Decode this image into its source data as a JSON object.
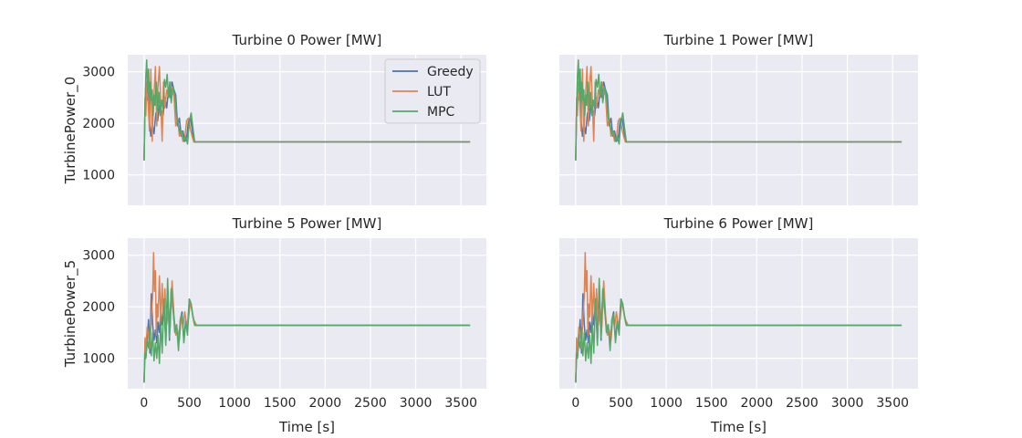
{
  "chart_data": [
    {
      "type": "line",
      "title": "Turbine 0 Power [MW]",
      "xlabel": "",
      "ylabel": "TurbinePower_0",
      "xlim": [
        -180,
        3780
      ],
      "ylim": [
        410,
        3330
      ],
      "xticks": [
        0,
        500,
        1000,
        1500,
        2000,
        2500,
        3000,
        3500
      ],
      "yticks": [
        1000,
        2000,
        3000
      ],
      "show_xtick_labels": false,
      "show_ytick_labels": true,
      "legend": "top-right",
      "series": [
        {
          "name": "Greedy",
          "color": "#4c72b0",
          "x": [
            0,
            10,
            20,
            30,
            45,
            60,
            75,
            90,
            110,
            130,
            150,
            170,
            190,
            210,
            230,
            250,
            270,
            290,
            310,
            330,
            350,
            370,
            390,
            410,
            430,
            450,
            470,
            490,
            510,
            530,
            550,
            580,
            600,
            3600
          ],
          "y": [
            1280,
            2300,
            2750,
            2450,
            2600,
            2050,
            1750,
            2000,
            1800,
            2200,
            2050,
            2350,
            2250,
            2150,
            2500,
            2300,
            2650,
            2500,
            2800,
            2650,
            2550,
            1950,
            2100,
            1750,
            1850,
            1650,
            1700,
            2050,
            2100,
            1900,
            1640,
            1640,
            1640,
            1640
          ]
        },
        {
          "name": "LUT",
          "color": "#dd8452",
          "x": [
            0,
            10,
            20,
            30,
            45,
            60,
            75,
            90,
            100,
            110,
            125,
            140,
            155,
            170,
            185,
            200,
            215,
            230,
            250,
            270,
            290,
            310,
            330,
            350,
            370,
            390,
            410,
            430,
            450,
            470,
            490,
            510,
            530,
            550,
            580,
            600,
            3600
          ],
          "y": [
            1280,
            2500,
            2150,
            2800,
            2400,
            1850,
            3050,
            1650,
            2200,
            2550,
            3100,
            1950,
            2750,
            3100,
            2400,
            1650,
            2800,
            2300,
            2650,
            2500,
            2800,
            2650,
            2550,
            1950,
            2100,
            1750,
            1850,
            1650,
            1700,
            2050,
            2100,
            1900,
            1750,
            1640,
            1640,
            1640,
            1640
          ]
        },
        {
          "name": "MPC",
          "color": "#55a868",
          "x": [
            0,
            10,
            20,
            30,
            40,
            50,
            60,
            70,
            80,
            90,
            100,
            110,
            120,
            135,
            150,
            165,
            180,
            195,
            210,
            225,
            240,
            255,
            270,
            285,
            300,
            320,
            340,
            360,
            380,
            400,
            420,
            440,
            460,
            480,
            500,
            520,
            540,
            560,
            580,
            600,
            3600
          ],
          "y": [
            1280,
            2300,
            2900,
            3230,
            2600,
            3050,
            2400,
            2800,
            2450,
            2650,
            2150,
            2550,
            2350,
            2800,
            2250,
            2600,
            2150,
            2450,
            2300,
            2850,
            2700,
            2950,
            2500,
            2800,
            2400,
            2700,
            2550,
            2100,
            1950,
            1800,
            1850,
            1650,
            1750,
            1600,
            2050,
            2200,
            1900,
            1640,
            1640,
            1640,
            1640
          ]
        }
      ]
    },
    {
      "type": "line",
      "title": "Turbine 1 Power [MW]",
      "xlabel": "",
      "ylabel": "",
      "xlim": [
        -180,
        3780
      ],
      "ylim": [
        410,
        3330
      ],
      "xticks": [
        0,
        500,
        1000,
        1500,
        2000,
        2500,
        3000,
        3500
      ],
      "yticks": [
        1000,
        2000,
        3000
      ],
      "show_xtick_labels": false,
      "show_ytick_labels": false,
      "series": [
        {
          "name": "Greedy",
          "color": "#4c72b0",
          "x": [
            0,
            10,
            20,
            30,
            45,
            60,
            75,
            90,
            110,
            130,
            150,
            170,
            190,
            210,
            230,
            250,
            270,
            290,
            310,
            330,
            350,
            370,
            390,
            410,
            430,
            450,
            470,
            490,
            510,
            530,
            550,
            580,
            600,
            3600
          ],
          "y": [
            1280,
            2300,
            2750,
            2450,
            2600,
            2050,
            1750,
            2000,
            1800,
            2200,
            2050,
            2350,
            2250,
            2150,
            2500,
            2300,
            2650,
            2500,
            2800,
            2650,
            2550,
            1950,
            2100,
            1750,
            1850,
            1650,
            1700,
            2050,
            2100,
            1900,
            1640,
            1640,
            1640,
            1640
          ]
        },
        {
          "name": "LUT",
          "color": "#dd8452",
          "x": [
            0,
            10,
            20,
            30,
            45,
            60,
            75,
            90,
            100,
            110,
            125,
            140,
            155,
            170,
            185,
            200,
            215,
            230,
            250,
            270,
            290,
            310,
            330,
            350,
            370,
            390,
            410,
            430,
            450,
            470,
            490,
            510,
            530,
            550,
            580,
            600,
            3600
          ],
          "y": [
            1280,
            2500,
            2150,
            2800,
            2400,
            1850,
            3050,
            1650,
            2200,
            2550,
            3100,
            1950,
            2750,
            3100,
            2400,
            1650,
            2800,
            2300,
            2650,
            2500,
            2800,
            2650,
            2550,
            1950,
            2100,
            1750,
            1850,
            1650,
            1700,
            2050,
            2100,
            1900,
            1750,
            1640,
            1640,
            1640,
            1640
          ]
        },
        {
          "name": "MPC",
          "color": "#55a868",
          "x": [
            0,
            10,
            20,
            30,
            40,
            50,
            60,
            70,
            80,
            90,
            100,
            110,
            120,
            135,
            150,
            165,
            180,
            195,
            210,
            225,
            240,
            255,
            270,
            285,
            300,
            320,
            340,
            360,
            380,
            400,
            420,
            440,
            460,
            480,
            500,
            520,
            540,
            560,
            580,
            600,
            3600
          ],
          "y": [
            1280,
            2300,
            2900,
            3230,
            2600,
            3050,
            2400,
            2800,
            2450,
            2650,
            2150,
            2550,
            2350,
            2800,
            2250,
            2600,
            2150,
            2450,
            2300,
            2850,
            2700,
            2950,
            2500,
            2800,
            2400,
            2700,
            2550,
            2100,
            1950,
            1800,
            1850,
            1650,
            1750,
            1600,
            2050,
            2200,
            1900,
            1640,
            1640,
            1640,
            1640
          ]
        }
      ]
    },
    {
      "type": "line",
      "title": "Turbine 5 Power [MW]",
      "xlabel": "Time [s]",
      "ylabel": "TurbinePower_5",
      "xlim": [
        -180,
        3780
      ],
      "ylim": [
        410,
        3330
      ],
      "xticks": [
        0,
        500,
        1000,
        1500,
        2000,
        2500,
        3000,
        3500
      ],
      "yticks": [
        1000,
        2000,
        3000
      ],
      "show_xtick_labels": true,
      "show_ytick_labels": true,
      "series": [
        {
          "name": "Greedy",
          "color": "#4c72b0",
          "x": [
            0,
            10,
            20,
            35,
            50,
            65,
            80,
            95,
            110,
            125,
            140,
            155,
            170,
            185,
            200,
            220,
            240,
            260,
            280,
            300,
            320,
            340,
            360,
            380,
            400,
            420,
            440,
            460,
            480,
            500,
            520,
            540,
            560,
            580,
            600,
            3600
          ],
          "y": [
            530,
            1200,
            1000,
            1350,
            1750,
            1100,
            2250,
            1650,
            1350,
            1550,
            1300,
            1700,
            1500,
            1900,
            1650,
            2150,
            1300,
            2400,
            1350,
            2300,
            1950,
            1550,
            1650,
            1250,
            1750,
            1900,
            1350,
            1750,
            1600,
            2150,
            2050,
            1800,
            1640,
            1640,
            1640,
            1640
          ]
        },
        {
          "name": "LUT",
          "color": "#dd8452",
          "x": [
            0,
            10,
            20,
            35,
            50,
            65,
            80,
            95,
            105,
            115,
            125,
            135,
            145,
            155,
            170,
            185,
            200,
            215,
            230,
            250,
            270,
            290,
            310,
            330,
            350,
            370,
            390,
            410,
            430,
            450,
            470,
            490,
            510,
            530,
            550,
            580,
            600,
            3600
          ],
          "y": [
            530,
            1400,
            1100,
            1600,
            1450,
            1200,
            1800,
            2200,
            3050,
            2300,
            2700,
            1450,
            2050,
            1800,
            2600,
            1700,
            2450,
            1750,
            2350,
            1650,
            2000,
            1600,
            2500,
            1850,
            1450,
            1550,
            1350,
            1800,
            1600,
            1900,
            1650,
            1750,
            2100,
            1900,
            1750,
            1640,
            1640,
            1640
          ]
        },
        {
          "name": "MPC",
          "color": "#55a868",
          "x": [
            0,
            10,
            20,
            35,
            50,
            65,
            80,
            95,
            110,
            125,
            140,
            155,
            170,
            185,
            200,
            220,
            240,
            260,
            280,
            300,
            320,
            340,
            360,
            380,
            400,
            420,
            440,
            460,
            480,
            500,
            520,
            540,
            560,
            580,
            600,
            3600
          ],
          "y": [
            530,
            1100,
            1000,
            1350,
            1200,
            1600,
            1050,
            1500,
            950,
            1300,
            1000,
            1450,
            900,
            1700,
            1100,
            2150,
            1250,
            2550,
            1400,
            2350,
            2000,
            1500,
            1650,
            1150,
            1750,
            1850,
            1300,
            1700,
            1450,
            2150,
            2050,
            1800,
            1640,
            1640,
            1640,
            1640
          ]
        }
      ]
    },
    {
      "type": "line",
      "title": "Turbine 6 Power [MW]",
      "xlabel": "Time [s]",
      "ylabel": "",
      "xlim": [
        -180,
        3780
      ],
      "ylim": [
        410,
        3330
      ],
      "xticks": [
        0,
        500,
        1000,
        1500,
        2000,
        2500,
        3000,
        3500
      ],
      "yticks": [
        1000,
        2000,
        3000
      ],
      "show_xtick_labels": true,
      "show_ytick_labels": false,
      "series": [
        {
          "name": "Greedy",
          "color": "#4c72b0",
          "x": [
            0,
            10,
            20,
            35,
            50,
            65,
            80,
            95,
            110,
            125,
            140,
            155,
            170,
            185,
            200,
            220,
            240,
            260,
            280,
            300,
            320,
            340,
            360,
            380,
            400,
            420,
            440,
            460,
            480,
            500,
            520,
            540,
            560,
            580,
            600,
            3600
          ],
          "y": [
            530,
            1200,
            1000,
            1350,
            1750,
            1100,
            2250,
            1650,
            1350,
            1550,
            1300,
            1700,
            1500,
            1900,
            1650,
            2150,
            1300,
            2400,
            1350,
            2300,
            1950,
            1550,
            1650,
            1250,
            1750,
            1900,
            1350,
            1750,
            1600,
            2150,
            2050,
            1800,
            1640,
            1640,
            1640,
            1640
          ]
        },
        {
          "name": "LUT",
          "color": "#dd8452",
          "x": [
            0,
            10,
            20,
            35,
            50,
            65,
            80,
            95,
            105,
            115,
            125,
            135,
            145,
            155,
            170,
            185,
            200,
            215,
            230,
            250,
            270,
            290,
            310,
            330,
            350,
            370,
            390,
            410,
            430,
            450,
            470,
            490,
            510,
            530,
            550,
            580,
            600,
            3600
          ],
          "y": [
            530,
            1400,
            1100,
            1600,
            1450,
            1200,
            1800,
            2200,
            3050,
            2300,
            2700,
            1450,
            2050,
            1800,
            2600,
            1700,
            2450,
            1750,
            2350,
            1650,
            2000,
            1600,
            2500,
            1850,
            1450,
            1550,
            1350,
            1800,
            1600,
            1900,
            1650,
            1750,
            2100,
            1900,
            1750,
            1640,
            1640,
            1640
          ]
        },
        {
          "name": "MPC",
          "color": "#55a868",
          "x": [
            0,
            10,
            20,
            35,
            50,
            65,
            80,
            95,
            110,
            125,
            140,
            155,
            170,
            185,
            200,
            220,
            240,
            260,
            280,
            300,
            320,
            340,
            360,
            380,
            400,
            420,
            440,
            460,
            480,
            500,
            520,
            540,
            560,
            580,
            600,
            3600
          ],
          "y": [
            530,
            1100,
            1000,
            1350,
            1200,
            1600,
            1050,
            1500,
            950,
            1300,
            1000,
            1450,
            900,
            1700,
            1100,
            2150,
            1250,
            2550,
            1400,
            2350,
            2000,
            1500,
            1650,
            1150,
            1750,
            1850,
            1300,
            1700,
            1450,
            2150,
            2050,
            1800,
            1640,
            1640,
            1640,
            1640
          ]
        }
      ]
    }
  ]
}
